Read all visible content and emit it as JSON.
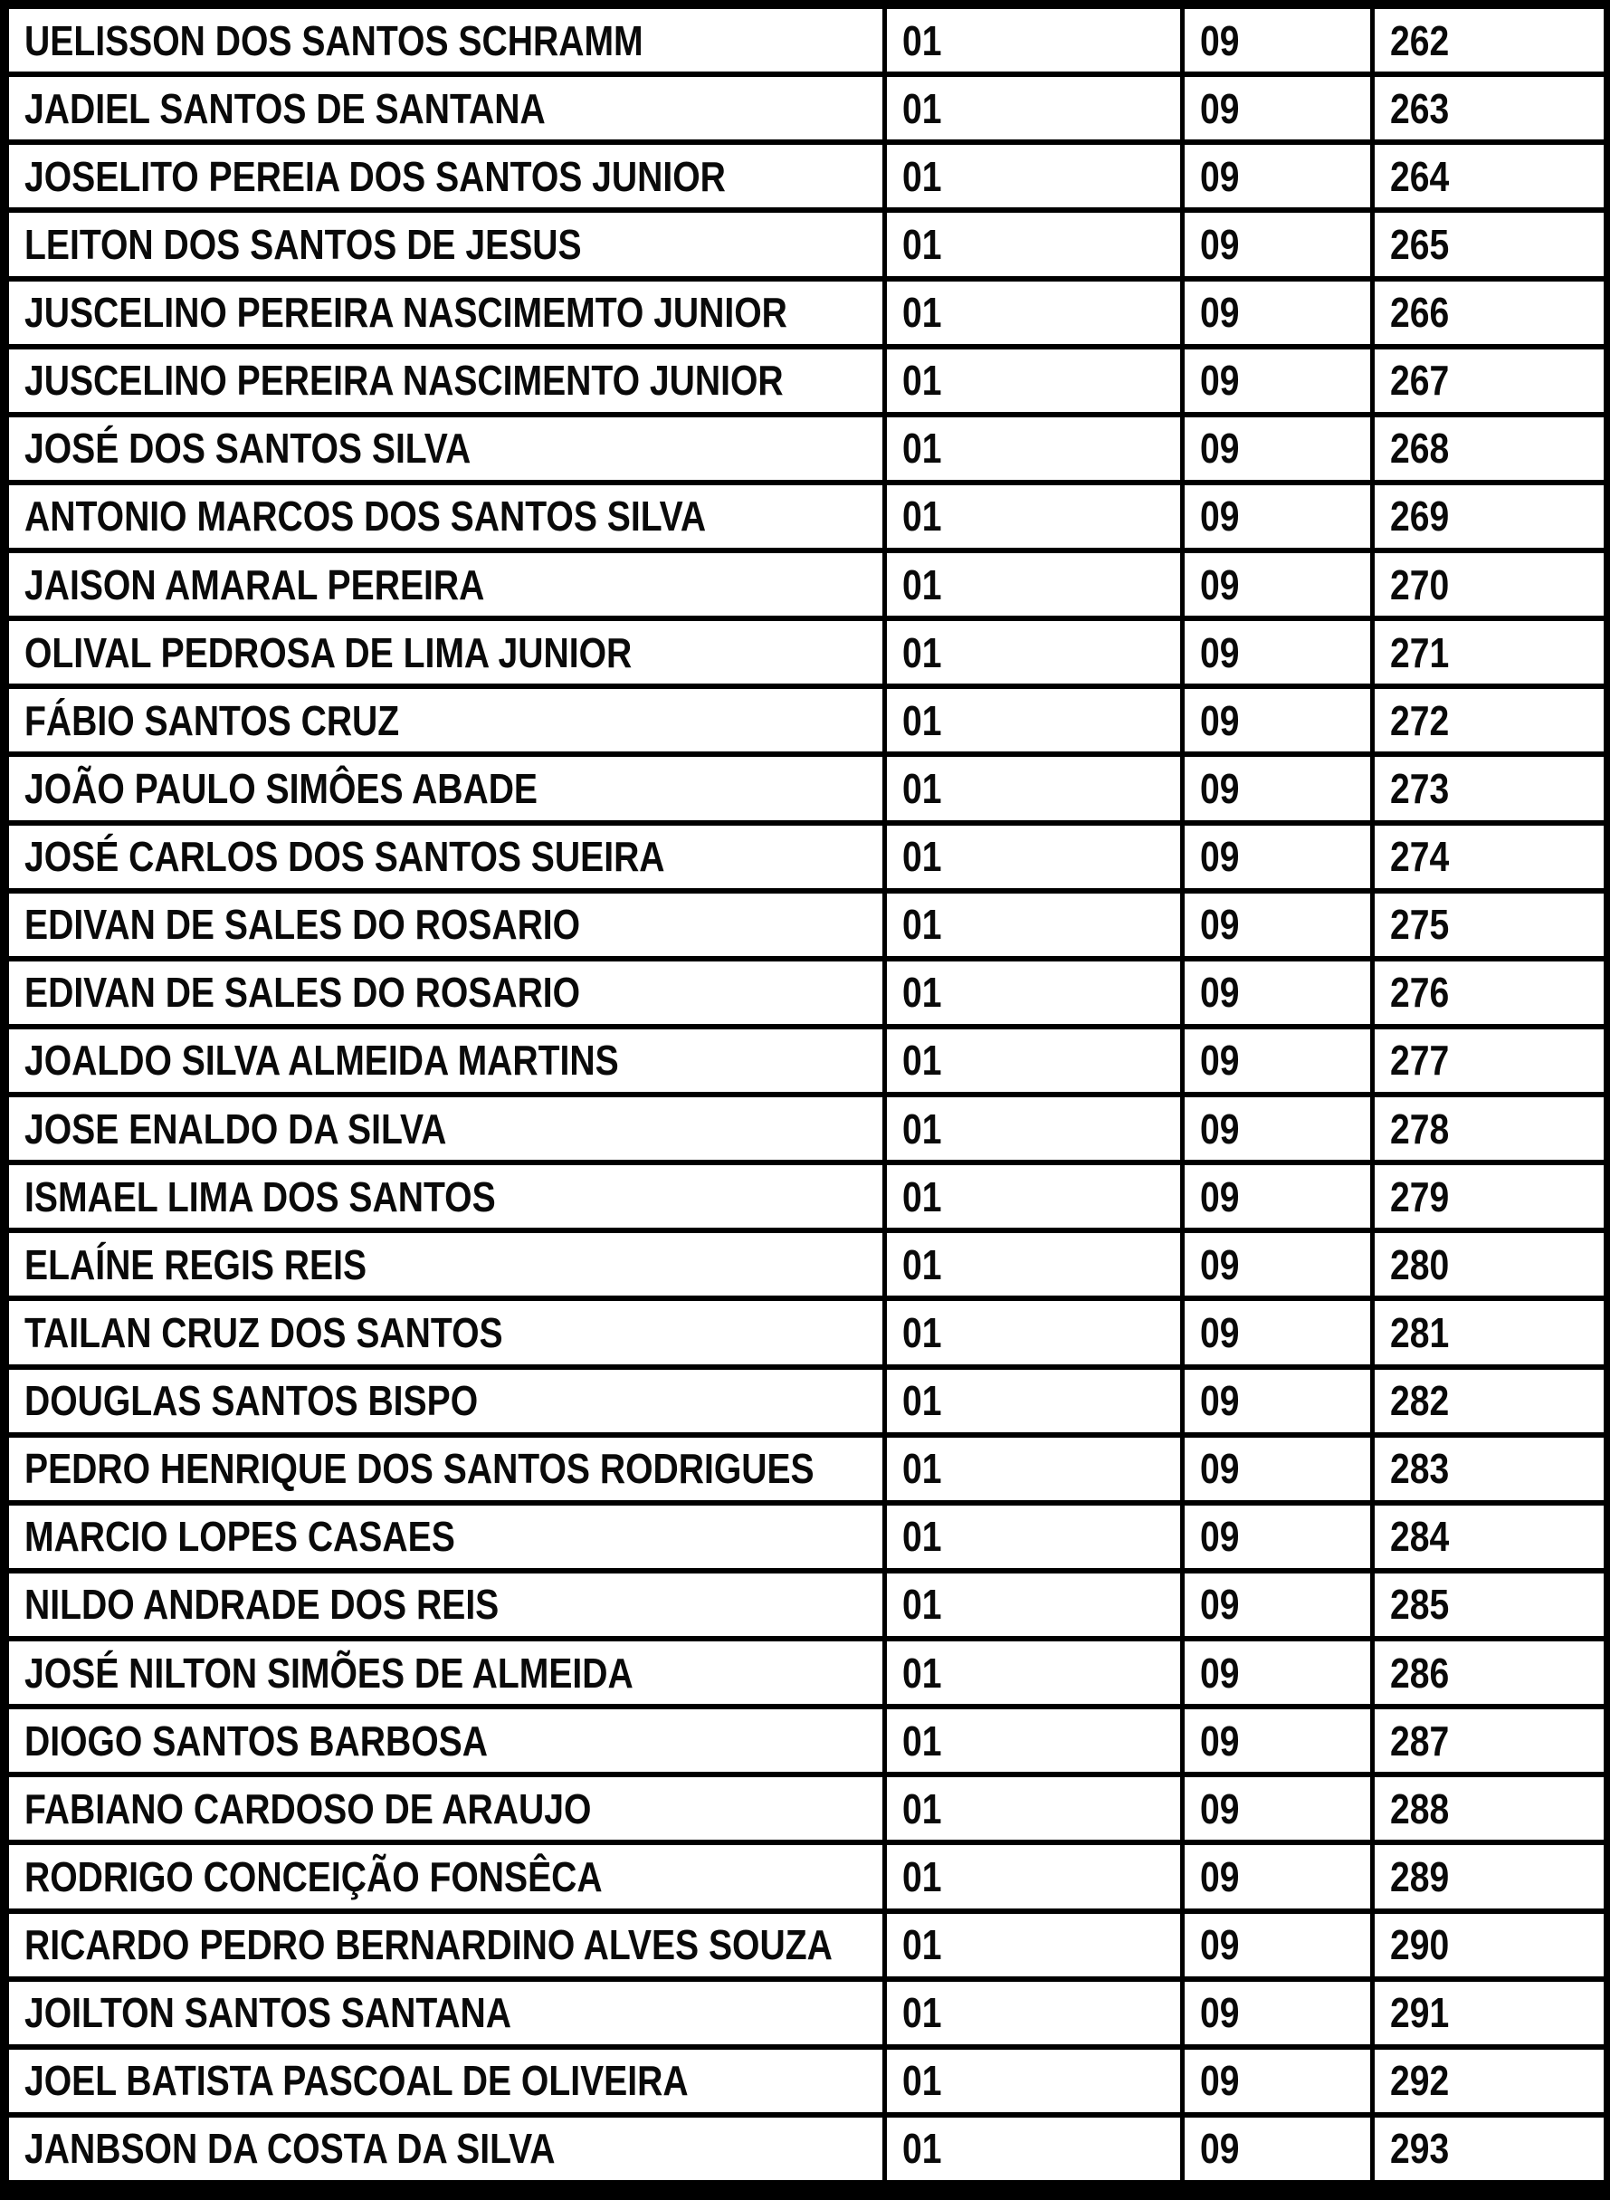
{
  "table": {
    "rows": [
      {
        "name": "UELISSON DOS SANTOS SCHRAMM",
        "c1": "01",
        "c2": "09",
        "num": "262"
      },
      {
        "name": "JADIEL SANTOS DE SANTANA",
        "c1": "01",
        "c2": "09",
        "num": "263"
      },
      {
        "name": "JOSELITO PEREIA DOS SANTOS JUNIOR",
        "c1": "01",
        "c2": "09",
        "num": "264"
      },
      {
        "name": "LEITON DOS SANTOS DE JESUS",
        "c1": "01",
        "c2": "09",
        "num": "265"
      },
      {
        "name": "JUSCELINO PEREIRA NASCIMEMTO JUNIOR",
        "c1": "01",
        "c2": "09",
        "num": "266"
      },
      {
        "name": "JUSCELINO PEREIRA NASCIMENTO JUNIOR",
        "c1": "01",
        "c2": "09",
        "num": "267"
      },
      {
        "name": "JOSÉ DOS SANTOS SILVA",
        "c1": "01",
        "c2": "09",
        "num": "268"
      },
      {
        "name": "ANTONIO MARCOS DOS SANTOS SILVA",
        "c1": "01",
        "c2": "09",
        "num": "269"
      },
      {
        "name": "JAISON AMARAL PEREIRA",
        "c1": "01",
        "c2": "09",
        "num": "270"
      },
      {
        "name": "OLIVAL PEDROSA DE LIMA JUNIOR",
        "c1": "01",
        "c2": "09",
        "num": "271"
      },
      {
        "name": "FÁBIO SANTOS CRUZ",
        "c1": "01",
        "c2": "09",
        "num": "272"
      },
      {
        "name": "JOÃO PAULO SIMÔES ABADE",
        "c1": "01",
        "c2": "09",
        "num": "273"
      },
      {
        "name": "JOSÉ CARLOS DOS SANTOS SUEIRA",
        "c1": "01",
        "c2": "09",
        "num": "274"
      },
      {
        "name": "EDIVAN DE SALES DO ROSARIO",
        "c1": "01",
        "c2": "09",
        "num": "275"
      },
      {
        "name": "EDIVAN DE SALES DO ROSARIO",
        "c1": "01",
        "c2": "09",
        "num": "276"
      },
      {
        "name": "JOALDO SILVA ALMEIDA MARTINS",
        "c1": "01",
        "c2": "09",
        "num": "277"
      },
      {
        "name": "JOSE ENALDO DA SILVA",
        "c1": "01",
        "c2": "09",
        "num": "278"
      },
      {
        "name": "ISMAEL LIMA DOS SANTOS",
        "c1": "01",
        "c2": "09",
        "num": "279"
      },
      {
        "name": "ELAÍNE REGIS REIS",
        "c1": "01",
        "c2": "09",
        "num": "280"
      },
      {
        "name": "TAILAN CRUZ DOS SANTOS",
        "c1": "01",
        "c2": "09",
        "num": "281"
      },
      {
        "name": "DOUGLAS SANTOS BISPO",
        "c1": "01",
        "c2": "09",
        "num": "282"
      },
      {
        "name": "PEDRO HENRIQUE DOS SANTOS RODRIGUES",
        "c1": "01",
        "c2": "09",
        "num": "283"
      },
      {
        "name": "MARCIO LOPES CASAES",
        "c1": "01",
        "c2": "09",
        "num": "284"
      },
      {
        "name": "NILDO ANDRADE DOS REIS",
        "c1": "01",
        "c2": "09",
        "num": "285"
      },
      {
        "name": "JOSÉ NILTON SIMÕES DE ALMEIDA",
        "c1": "01",
        "c2": "09",
        "num": "286"
      },
      {
        "name": "DIOGO SANTOS BARBOSA",
        "c1": "01",
        "c2": "09",
        "num": "287"
      },
      {
        "name": "FABIANO CARDOSO DE ARAUJO",
        "c1": "01",
        "c2": "09",
        "num": "288"
      },
      {
        "name": "RODRIGO CONCEIÇÃO FONSÊCA",
        "c1": "01",
        "c2": "09",
        "num": "289"
      },
      {
        "name": "RICARDO PEDRO BERNARDINO ALVES SOUZA",
        "c1": "01",
        "c2": "09",
        "num": "290"
      },
      {
        "name": "JOILTON SANTOS SANTANA",
        "c1": "01",
        "c2": "09",
        "num": "291"
      },
      {
        "name": "JOEL BATISTA PASCOAL DE OLIVEIRA",
        "c1": "01",
        "c2": "09",
        "num": "292"
      },
      {
        "name": "JANBSON DA COSTA DA SILVA",
        "c1": "01",
        "c2": "09",
        "num": "293"
      }
    ]
  },
  "colors": {
    "border": "#000000",
    "cell_background": "#ffffff",
    "text": "#0a0a0a"
  }
}
